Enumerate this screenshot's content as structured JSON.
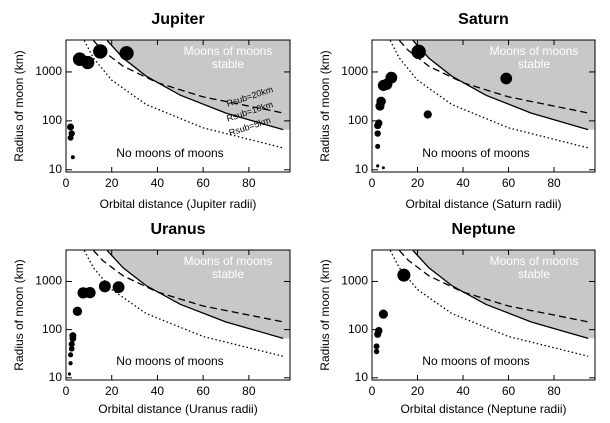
{
  "chart_data": [
    {
      "type": "scatter",
      "title": "Jupiter",
      "xlabel": "Orbital distance (Jupiter radii)",
      "ylabel": "Radius of moon (km)",
      "xlim": [
        0,
        98
      ],
      "xticks": [
        0,
        20,
        40,
        60,
        80
      ],
      "ylim": [
        9,
        4500
      ],
      "yticks": [
        10,
        100,
        1000
      ],
      "log_y": true,
      "points": {
        "color": "#000000",
        "x": [
          3,
          2,
          2.5,
          2,
          6,
          9.5,
          15,
          26.5
        ],
        "values": [
          18,
          45,
          55,
          75,
          1820,
          1560,
          2630,
          2410
        ]
      },
      "shade_color": "#c8c8c8",
      "curves": [
        {
          "style": "dashed",
          "color": "#000000",
          "x": [
            12,
            16,
            25,
            40,
            60,
            95
          ],
          "values": [
            4400,
            2740,
            1310,
            603,
            309,
            145
          ]
        },
        {
          "style": "solid",
          "color": "#000000",
          "x": [
            18,
            25,
            35,
            50,
            70,
            95
          ],
          "values": [
            4400,
            1920,
            824,
            335,
            144,
            66
          ]
        },
        {
          "style": "dotted",
          "color": "#000000",
          "x": [
            8,
            12,
            20,
            35,
            60,
            95
          ],
          "values": [
            4400,
            1925,
            680,
            217,
            72,
            28
          ]
        }
      ],
      "annotations": {
        "stable": [
          "Moons of moons",
          "stable"
        ],
        "unstable": "No moons of moons",
        "curve_labels": [
          "Rsub=20km",
          "Rsub=10km",
          "Rsub=5km"
        ]
      }
    },
    {
      "type": "scatter",
      "title": "Saturn",
      "xlabel": "Orbital distance (Saturn radii)",
      "ylabel": "Radius of moon (km)",
      "xlim": [
        0,
        98
      ],
      "xticks": [
        0,
        20,
        40,
        60,
        80
      ],
      "ylim": [
        9,
        4500
      ],
      "yticks": [
        10,
        100,
        1000
      ],
      "log_y": true,
      "points": {
        "color": "#000000",
        "x": [
          2.5,
          5,
          2.5,
          2.5,
          3,
          2.5,
          3.5,
          4,
          5,
          6.5,
          8.5,
          20.5,
          24.5,
          59
        ],
        "values": [
          12,
          11,
          30,
          55,
          90,
          80,
          200,
          250,
          530,
          560,
          765,
          2575,
          135,
          735
        ]
      },
      "shade_color": "#c8c8c8",
      "curves": [
        {
          "style": "dashed",
          "color": "#000000",
          "x": [
            12,
            16,
            25,
            40,
            60,
            95
          ],
          "values": [
            4400,
            2740,
            1310,
            603,
            309,
            145
          ]
        },
        {
          "style": "solid",
          "color": "#000000",
          "x": [
            18,
            25,
            35,
            50,
            70,
            95
          ],
          "values": [
            4400,
            1920,
            824,
            335,
            144,
            66
          ]
        },
        {
          "style": "dotted",
          "color": "#000000",
          "x": [
            8,
            12,
            20,
            35,
            60,
            95
          ],
          "values": [
            4400,
            1925,
            680,
            217,
            72,
            28
          ]
        }
      ],
      "annotations": {
        "stable": [
          "Moons of moons",
          "stable"
        ],
        "unstable": "No moons of moons"
      }
    },
    {
      "type": "scatter",
      "title": "Uranus",
      "xlabel": "Orbital distance (Uranus radii)",
      "ylabel": "Radius of moon (km)",
      "xlim": [
        0,
        98
      ],
      "xticks": [
        0,
        20,
        40,
        60,
        80
      ],
      "ylim": [
        9,
        4500
      ],
      "yticks": [
        10,
        100,
        1000
      ],
      "log_y": true,
      "points": {
        "color": "#000000",
        "x": [
          1.5,
          2,
          2,
          2.5,
          2.5,
          3,
          3,
          5,
          7.5,
          10.5,
          17,
          23
        ],
        "values": [
          12,
          20,
          30,
          40,
          50,
          65,
          75,
          240,
          580,
          585,
          790,
          760
        ]
      },
      "shade_color": "#c8c8c8",
      "curves": [
        {
          "style": "dashed",
          "color": "#000000",
          "x": [
            12,
            16,
            25,
            40,
            60,
            95
          ],
          "values": [
            4400,
            2740,
            1310,
            603,
            309,
            145
          ]
        },
        {
          "style": "solid",
          "color": "#000000",
          "x": [
            18,
            25,
            35,
            50,
            70,
            95
          ],
          "values": [
            4400,
            1920,
            824,
            335,
            144,
            66
          ]
        },
        {
          "style": "dotted",
          "color": "#000000",
          "x": [
            8,
            12,
            20,
            35,
            60,
            95
          ],
          "values": [
            4400,
            1925,
            680,
            217,
            72,
            28
          ]
        }
      ],
      "annotations": {
        "stable": [
          "Moons of moons",
          "stable"
        ],
        "unstable": "No moons of moons"
      }
    },
    {
      "type": "scatter",
      "title": "Neptune",
      "xlabel": "Orbital distance (Neptune radii)",
      "ylabel": "Radius of moon (km)",
      "xlim": [
        0,
        98
      ],
      "xticks": [
        0,
        20,
        40,
        60,
        80
      ],
      "ylim": [
        9,
        4500
      ],
      "yticks": [
        10,
        100,
        1000
      ],
      "log_y": true,
      "points": {
        "color": "#000000",
        "x": [
          2,
          2,
          2.5,
          3,
          5,
          14
        ],
        "values": [
          35,
          45,
          80,
          95,
          210,
          1353
        ]
      },
      "shade_color": "#c8c8c8",
      "curves": [
        {
          "style": "dashed",
          "color": "#000000",
          "x": [
            12,
            16,
            25,
            40,
            60,
            95
          ],
          "values": [
            4400,
            2740,
            1310,
            603,
            309,
            145
          ]
        },
        {
          "style": "solid",
          "color": "#000000",
          "x": [
            18,
            25,
            35,
            50,
            70,
            95
          ],
          "values": [
            4400,
            1920,
            824,
            335,
            144,
            66
          ]
        },
        {
          "style": "dotted",
          "color": "#000000",
          "x": [
            8,
            12,
            20,
            35,
            60,
            95
          ],
          "values": [
            4400,
            1925,
            680,
            217,
            72,
            28
          ]
        }
      ],
      "annotations": {
        "stable": [
          "Moons of moons",
          "stable"
        ],
        "unstable": "No moons of moons"
      }
    }
  ]
}
